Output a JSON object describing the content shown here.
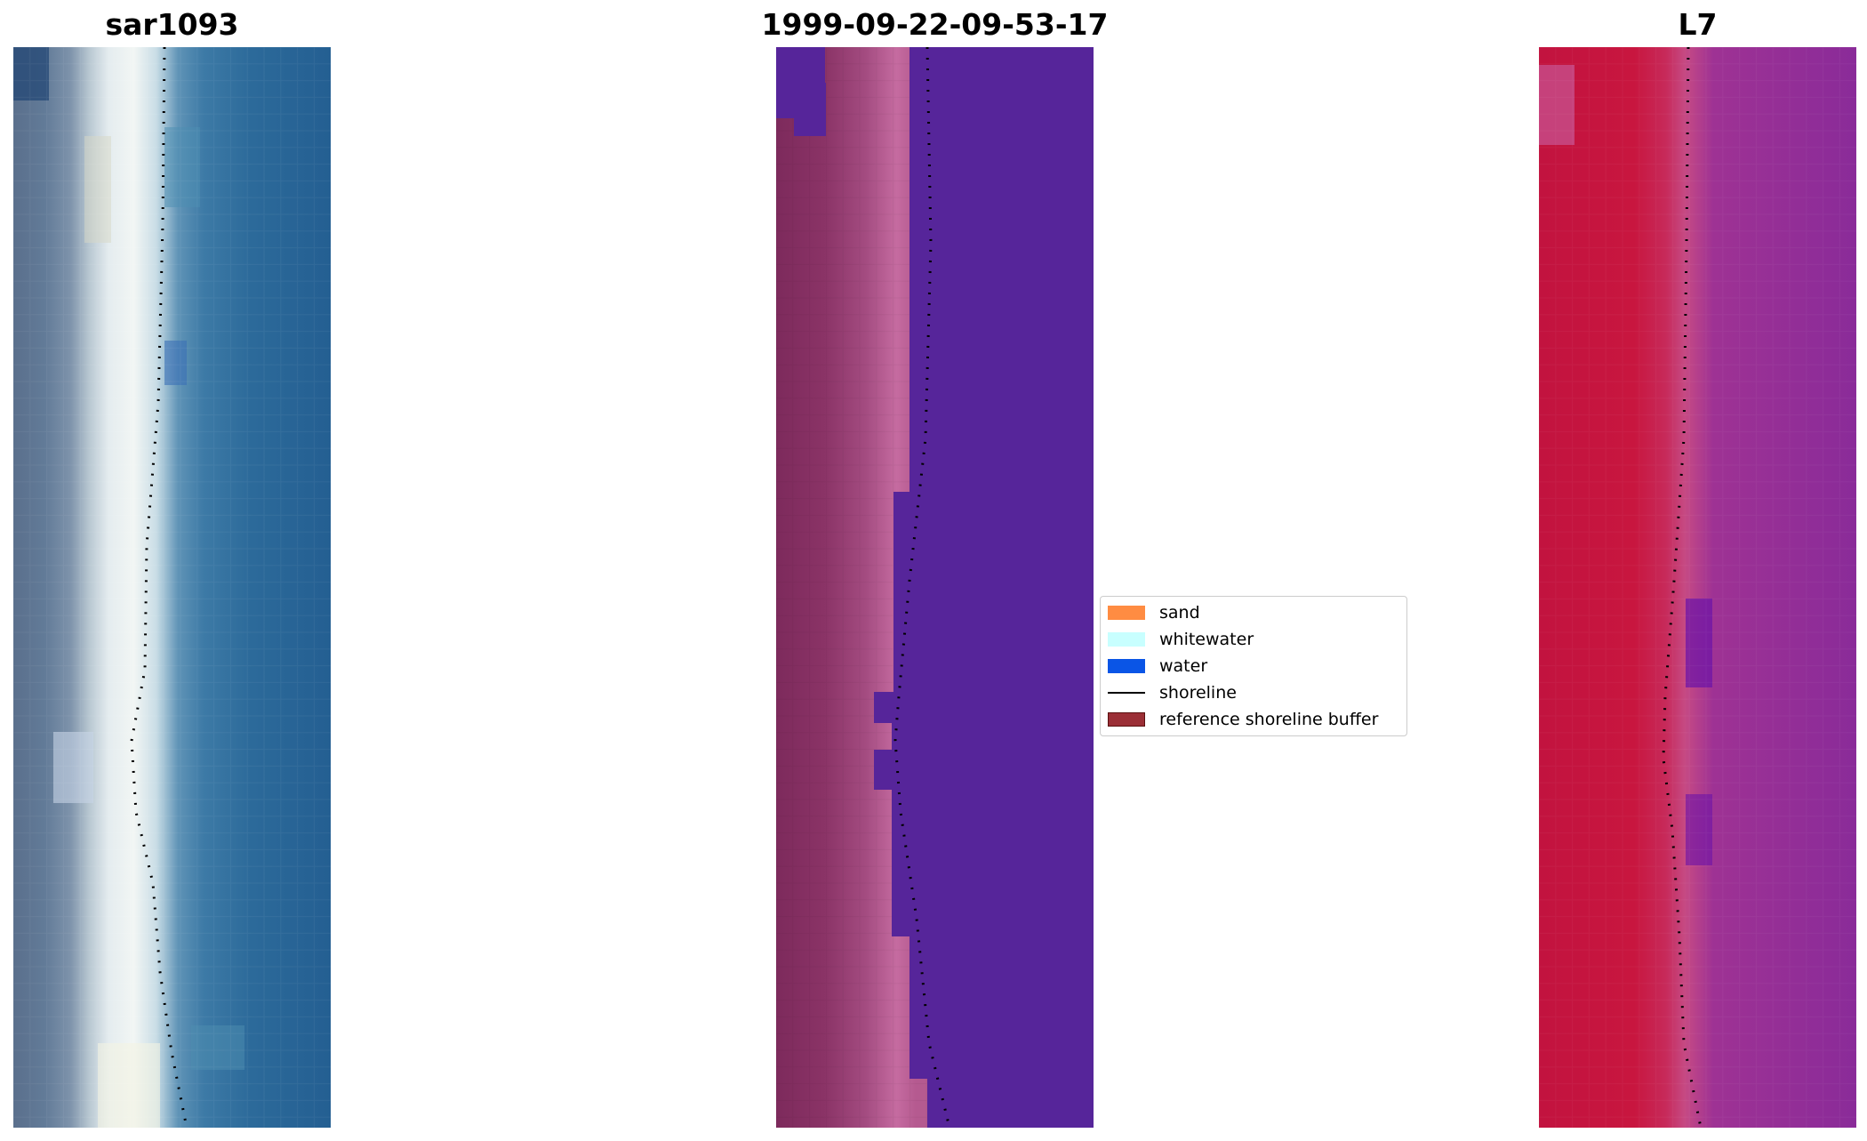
{
  "panels": [
    {
      "title": "sar1093"
    },
    {
      "title": "1999-09-22-09-53-17"
    },
    {
      "title": "L7"
    }
  ],
  "legend": {
    "items": [
      {
        "label": "sand",
        "color": "#ff8c42"
      },
      {
        "label": "whitewater",
        "color": "#c8ffff"
      },
      {
        "label": "water",
        "color": "#0a55e6"
      },
      {
        "label": "shoreline",
        "color": "#000000"
      },
      {
        "label": "reference shoreline buffer",
        "color": "#9b2f36"
      }
    ]
  }
}
